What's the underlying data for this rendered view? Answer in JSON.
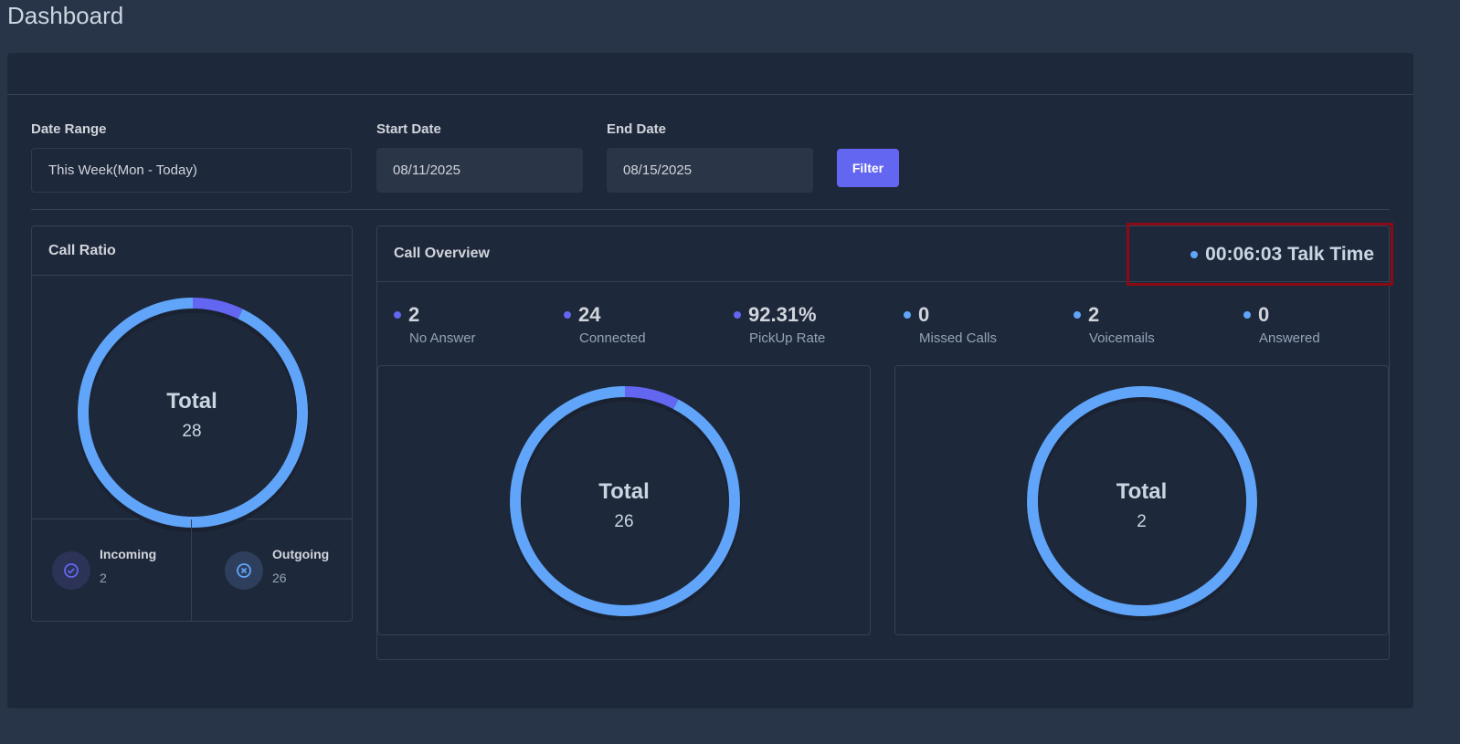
{
  "page": {
    "title": "Dashboard"
  },
  "filters": {
    "date_range_label": "Date Range",
    "date_range_value": "This Week(Mon - Today)",
    "start_label": "Start Date",
    "start_value": "08/11/2025",
    "end_label": "End Date",
    "end_value": "08/15/2025",
    "filter_button": "Filter"
  },
  "call_ratio": {
    "title": "Call Ratio",
    "total_label": "Total",
    "total": "28",
    "incoming_label": "Incoming",
    "incoming": "2",
    "outgoing_label": "Outgoing",
    "outgoing": "26"
  },
  "overview": {
    "title": "Call Overview",
    "talk_time": "00:06:03 Talk Time",
    "stats": [
      {
        "value": "2",
        "label": "No Answer",
        "color": "#6366f1"
      },
      {
        "value": "24",
        "label": "Connected",
        "color": "#6366f1"
      },
      {
        "value": "92.31%",
        "label": "PickUp Rate",
        "color": "#6366f1"
      },
      {
        "value": "0",
        "label": "Missed Calls",
        "color": "#60a5fa"
      },
      {
        "value": "2",
        "label": "Voicemails",
        "color": "#60a5fa"
      },
      {
        "value": "0",
        "label": "Answered",
        "color": "#60a5fa"
      }
    ],
    "left_chart": {
      "total_label": "Total",
      "total": "26",
      "segments": [
        2,
        24
      ]
    },
    "right_chart": {
      "total_label": "Total",
      "total": "2",
      "segments": [
        0,
        2
      ]
    }
  },
  "ratio_segments": [
    2,
    26
  ],
  "colors": {
    "primary": "#6366f1",
    "secondary": "#60a5fa",
    "highlight": "#8b0a14"
  }
}
